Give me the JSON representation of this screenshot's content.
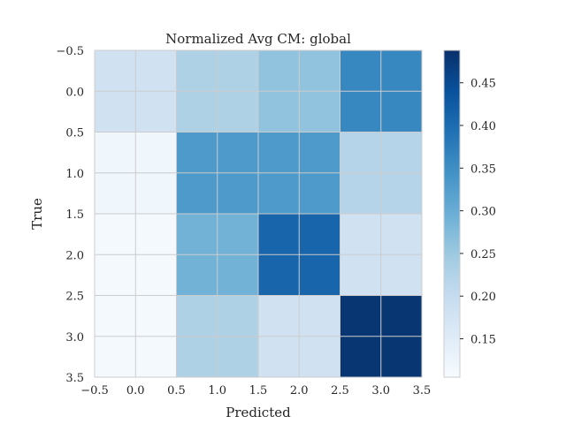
{
  "chart_data": {
    "type": "heatmap",
    "title": "Normalized Avg CM: global",
    "xlabel": "Predicted",
    "ylabel": "True",
    "xlim": [
      -0.5,
      3.5
    ],
    "ylim": [
      3.5,
      -0.5
    ],
    "x_ticks": [
      "−0.5",
      "0.0",
      "0.5",
      "1.0",
      "1.5",
      "2.0",
      "2.5",
      "3.0",
      "3.5"
    ],
    "y_ticks": [
      "−0.5",
      "0.0",
      "0.5",
      "1.0",
      "1.5",
      "2.0",
      "2.5",
      "3.0",
      "3.5"
    ],
    "matrix": [
      [
        0.18,
        0.23,
        0.26,
        0.36
      ],
      [
        0.12,
        0.33,
        0.33,
        0.22
      ],
      [
        0.11,
        0.29,
        0.41,
        0.18
      ],
      [
        0.11,
        0.23,
        0.18,
        0.48
      ]
    ],
    "colormap": "Blues",
    "colorbar": {
      "min": 0.105,
      "max": 0.488,
      "tick_values": [
        0.15,
        0.2,
        0.25,
        0.3,
        0.35,
        0.4,
        0.45
      ],
      "tick_labels": [
        "0.15",
        "0.20",
        "0.25",
        "0.30",
        "0.35",
        "0.40",
        "0.45"
      ]
    },
    "grid": true
  }
}
